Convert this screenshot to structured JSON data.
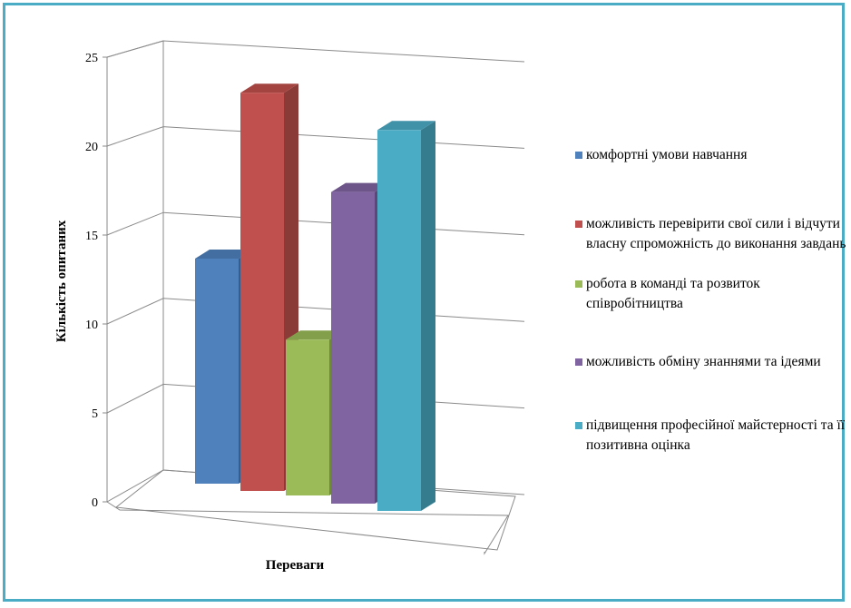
{
  "chart_data": {
    "type": "bar",
    "title": "",
    "xlabel": "Переваги",
    "ylabel": "Кількість опитаних",
    "ylim": [
      0,
      25
    ],
    "yticks": [
      "0",
      "5",
      "10",
      "15",
      "20",
      "25"
    ],
    "series": [
      {
        "name": "комфортні умови навчання",
        "value": 13,
        "color": "#4f81bd"
      },
      {
        "name": "можливість перевірити свої сили і відчути власну спроможність до виконання завдань",
        "value": 23,
        "color": "#c0504d"
      },
      {
        "name": "робота в команді та розвиток співробітництва",
        "value": 9,
        "color": "#9bbb59"
      },
      {
        "name": "можливість обміну знаннями та ідеями",
        "value": 18,
        "color": "#8064a2"
      },
      {
        "name": "підвищення професійної майстерності та її позитивна оцінка",
        "value": 22,
        "color": "#4bacc6"
      }
    ],
    "grid": true,
    "legend_position": "right",
    "view": "3d-clustered-column"
  }
}
